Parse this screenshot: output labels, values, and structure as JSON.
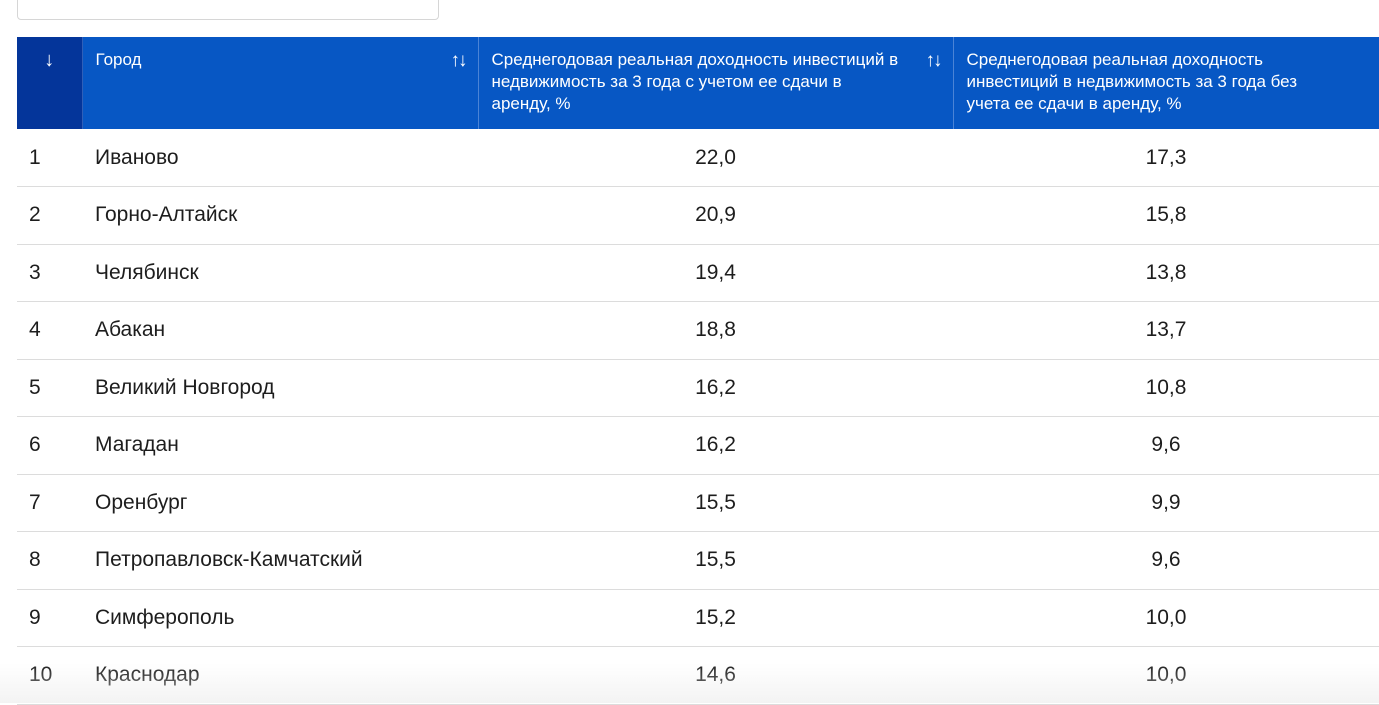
{
  "header": {
    "rank_icon": "arrow-down-icon",
    "rank_glyph": "↓",
    "sort_glyph": "↑↓",
    "columns": [
      "Город",
      "Среднегодовая реальная доходность инвестиций в недвижимость за 3 года с учетом ее сдачи в аренду, %",
      "Среднегодовая реальная доходность инвестиций в недвижимость за 3 года без учета ее сдачи в аренду, %"
    ]
  },
  "rows": [
    {
      "rank": "1",
      "city": "Иваново",
      "with_rent": "22,0",
      "without_rent": "17,3"
    },
    {
      "rank": "2",
      "city": "Горно-Алтайск",
      "with_rent": "20,9",
      "without_rent": "15,8"
    },
    {
      "rank": "3",
      "city": "Челябинск",
      "with_rent": "19,4",
      "without_rent": "13,8"
    },
    {
      "rank": "4",
      "city": "Абакан",
      "with_rent": "18,8",
      "without_rent": "13,7"
    },
    {
      "rank": "5",
      "city": "Великий Новгород",
      "with_rent": "16,2",
      "without_rent": "10,8"
    },
    {
      "rank": "6",
      "city": "Магадан",
      "with_rent": "16,2",
      "without_rent": "9,6"
    },
    {
      "rank": "7",
      "city": "Оренбург",
      "with_rent": "15,5",
      "without_rent": "9,9"
    },
    {
      "rank": "8",
      "city": "Петропавловск-Камчатский",
      "with_rent": "15,5",
      "without_rent": "9,6"
    },
    {
      "rank": "9",
      "city": "Симферополь",
      "with_rent": "15,2",
      "without_rent": "10,0"
    },
    {
      "rank": "10",
      "city": "Краснодар",
      "with_rent": "14,6",
      "without_rent": "10,0"
    }
  ],
  "colors": {
    "header_bg": "#0757c4",
    "rank_header_bg": "#04359a",
    "row_border": "#dcdcdc"
  }
}
